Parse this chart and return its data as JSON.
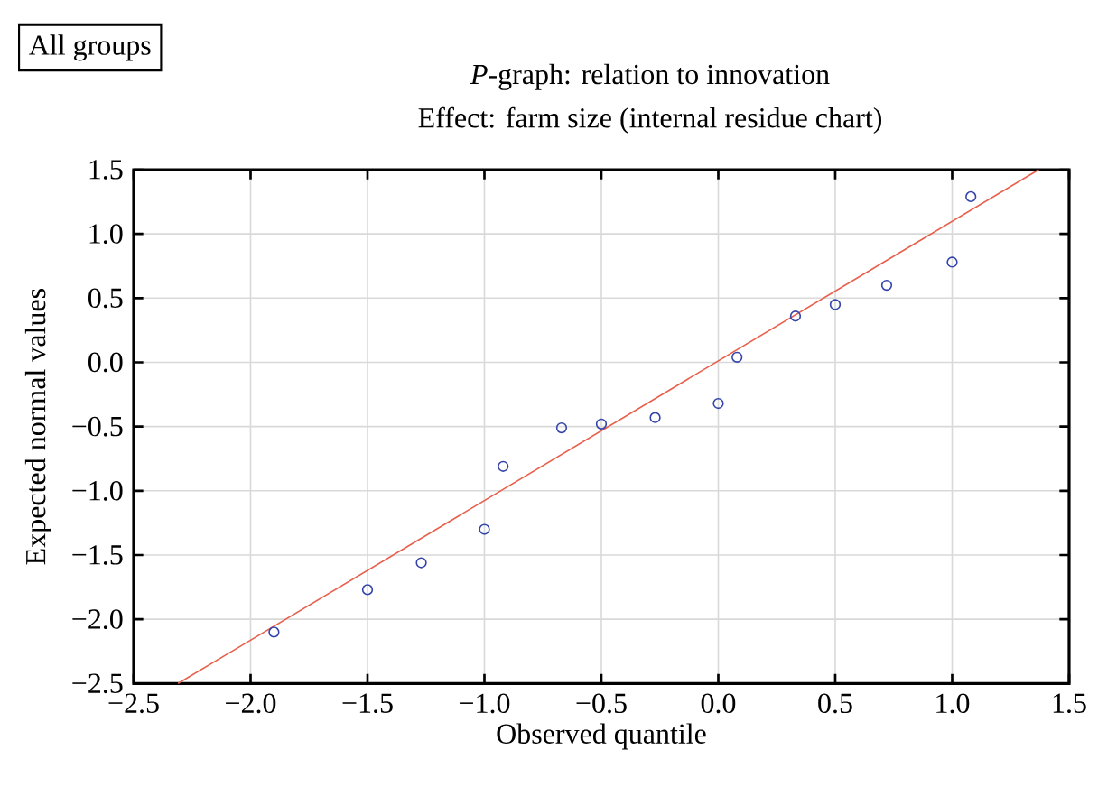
{
  "chart_data": {
    "type": "scatter",
    "title": "*P*-graph: relation to innovation",
    "subtitle": "Effect: farm size (internal residue chart)",
    "xlabel": "Observed quantile",
    "ylabel": "Expected normal values",
    "annotations": [
      "All groups"
    ],
    "xlim": [
      -2.5,
      1.5
    ],
    "ylim": [
      -2.5,
      1.5
    ],
    "xticks": [
      {
        "value": -2.5,
        "label": "−2.5"
      },
      {
        "value": -2.0,
        "label": "−2.0"
      },
      {
        "value": -1.5,
        "label": "−1.5"
      },
      {
        "value": -1.0,
        "label": "−1.0"
      },
      {
        "value": -0.5,
        "label": "−0.5"
      },
      {
        "value": 0.0,
        "label": "0.0"
      },
      {
        "value": 0.5,
        "label": "0.5"
      },
      {
        "value": 1.0,
        "label": "1.0"
      },
      {
        "value": 1.5,
        "label": "1.5"
      }
    ],
    "yticks": [
      {
        "value": -2.5,
        "label": "−2.5"
      },
      {
        "value": -2.0,
        "label": "−2.0"
      },
      {
        "value": -1.5,
        "label": "−1.5"
      },
      {
        "value": -1.0,
        "label": "−1.0"
      },
      {
        "value": -0.5,
        "label": "−0.5"
      },
      {
        "value": 0.0,
        "label": "0.0"
      },
      {
        "value": 0.5,
        "label": "0.5"
      },
      {
        "value": 1.0,
        "label": "1.0"
      },
      {
        "value": 1.5,
        "label": "1.5"
      }
    ],
    "grid": true,
    "series": [
      {
        "marker": "circle",
        "color": "#3344aa",
        "x": [
          -1.9,
          -1.5,
          -1.27,
          -1.0,
          -0.92,
          -0.67,
          -0.5,
          -0.27,
          0.0,
          0.08,
          0.33,
          0.5,
          0.72,
          1.0,
          1.08
        ],
        "values": [
          -2.1,
          -1.77,
          -1.56,
          -1.3,
          -0.81,
          -0.51,
          -0.48,
          -0.43,
          -0.32,
          0.04,
          0.36,
          0.45,
          0.6,
          0.78,
          1.29
        ]
      },
      {
        "type": "line",
        "marker": "none",
        "color": "#e8604c",
        "x": [
          -2.31,
          1.37
        ],
        "values": [
          -2.5,
          1.5
        ]
      }
    ]
  }
}
